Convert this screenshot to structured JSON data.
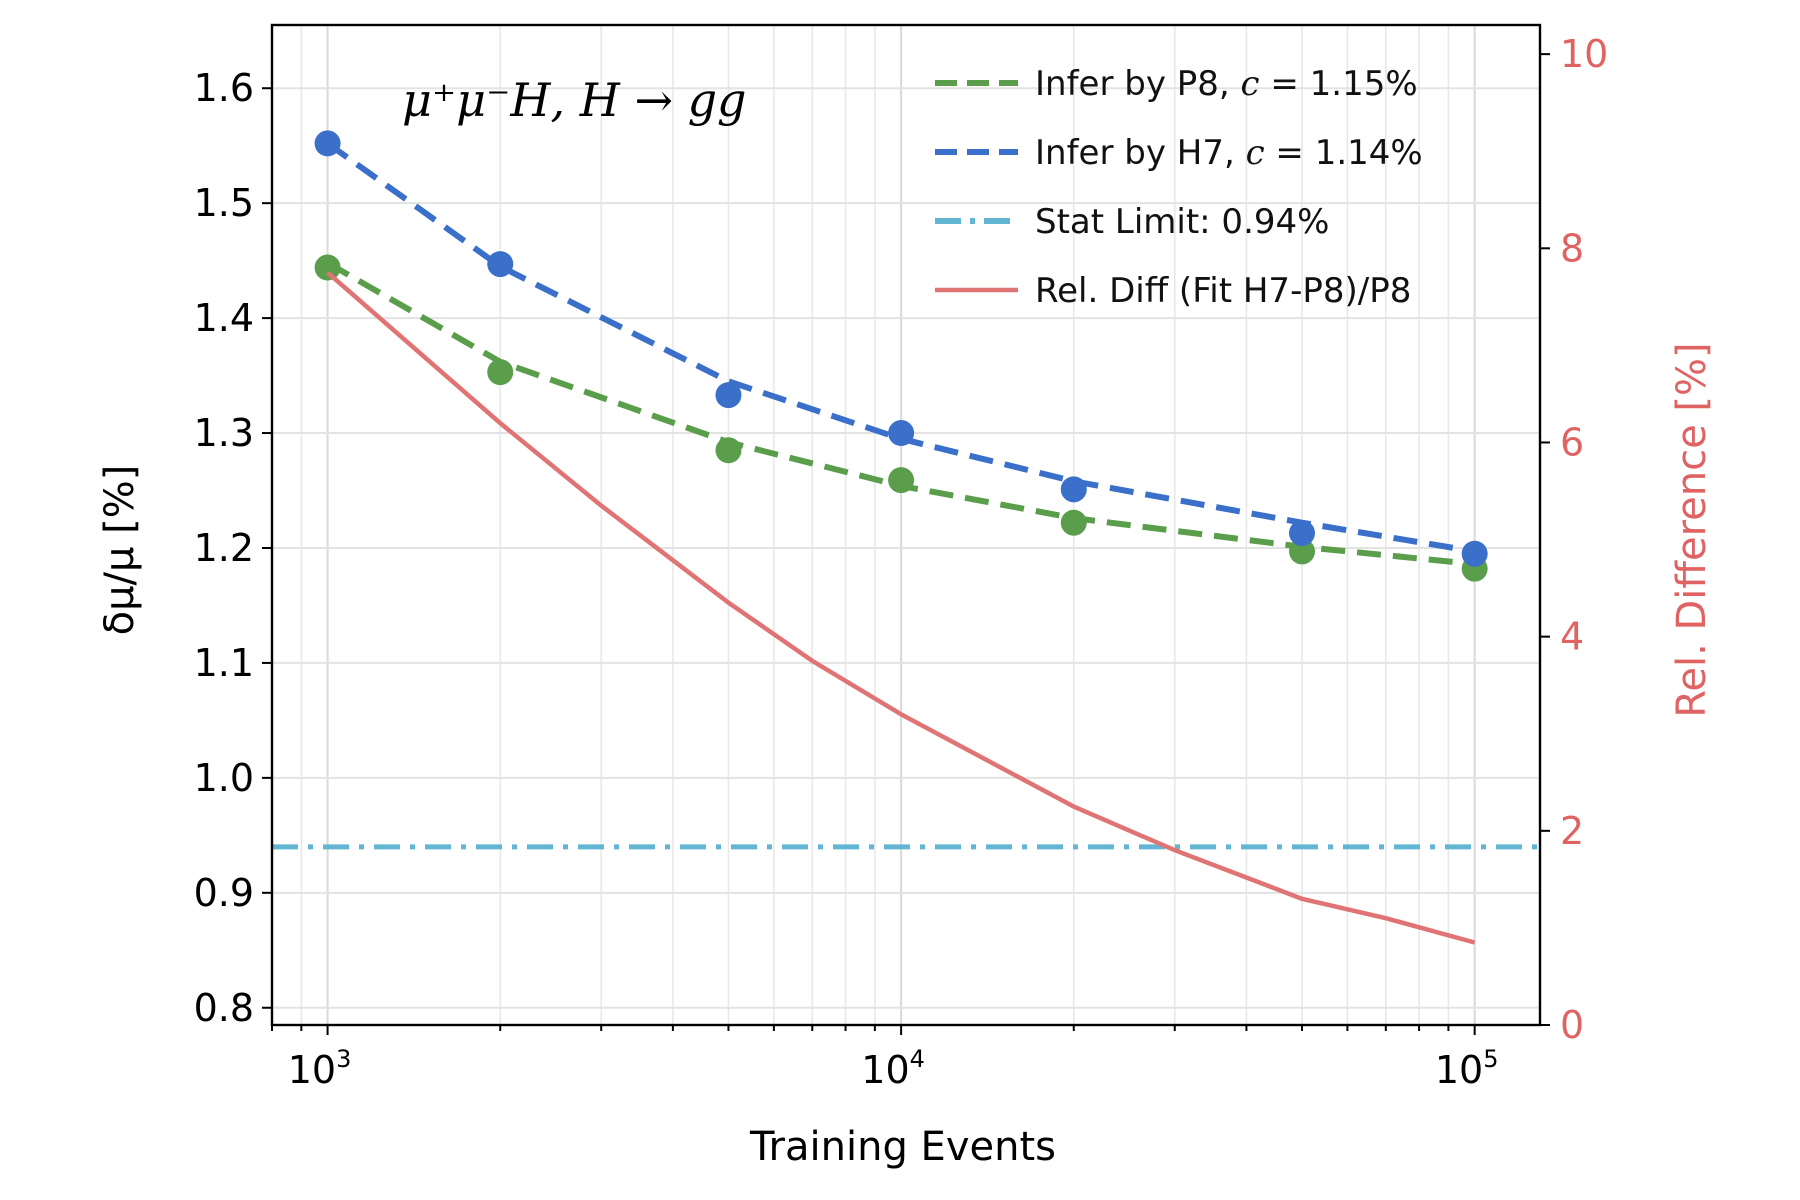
{
  "chart_data": {
    "type": "line",
    "annotation": "μ⁺μ⁻H, H → gg",
    "xlabel": "Training Events",
    "ylabel": "δμ/μ [%]",
    "ylabel_right": "Rel. Difference [%]",
    "xscale": "log",
    "xlim": [
      800,
      130000
    ],
    "ylim": [
      0.785,
      1.655
    ],
    "ylim_right": [
      0,
      10.3
    ],
    "x_ticks": [
      {
        "base": "10",
        "exp": "3",
        "value": 1000
      },
      {
        "base": "10",
        "exp": "4",
        "value": 10000
      },
      {
        "base": "10",
        "exp": "5",
        "value": 100000
      }
    ],
    "y_ticks": [
      "0.8",
      "0.9",
      "1.0",
      "1.1",
      "1.2",
      "1.3",
      "1.4",
      "1.5",
      "1.6"
    ],
    "y_ticks_right": [
      "0",
      "2",
      "4",
      "6",
      "8",
      "10"
    ],
    "grid": true,
    "legend_position": "top-right",
    "series": [
      {
        "name": "Infer by P8",
        "legend_label": "Infer by P8, c = 1.15%",
        "legend_prefix": "Infer by P8, ",
        "legend_var": "c",
        "legend_suffix": " = 1.15%",
        "color": "#5a9e4b",
        "style": "dashed",
        "x": [
          1000,
          2000,
          5000,
          10000,
          20000,
          50000,
          100000
        ],
        "y": [
          1.444,
          1.353,
          1.285,
          1.259,
          1.222,
          1.197,
          1.182
        ],
        "fit": {
          "c": 1.15,
          "points": [
            [
              1000,
              1.448
            ],
            [
              2000,
              1.362
            ],
            [
              5000,
              1.292
            ],
            [
              10000,
              1.254
            ],
            [
              20000,
              1.226
            ],
            [
              50000,
              1.201
            ],
            [
              100000,
              1.186
            ]
          ]
        }
      },
      {
        "name": "Infer by H7",
        "legend_label": "Infer by H7, c = 1.14%",
        "legend_prefix": "Infer by H7, ",
        "legend_var": "c",
        "legend_suffix": " = 1.14%",
        "color": "#3a6fca",
        "style": "dashed",
        "x": [
          1000,
          2000,
          5000,
          10000,
          20000,
          50000,
          100000
        ],
        "y": [
          1.552,
          1.447,
          1.333,
          1.3,
          1.251,
          1.213,
          1.195
        ],
        "fit": {
          "c": 1.14,
          "points": [
            [
              1000,
              1.552
            ],
            [
              2000,
              1.445
            ],
            [
              5000,
              1.345
            ],
            [
              10000,
              1.295
            ],
            [
              20000,
              1.258
            ],
            [
              50000,
              1.222
            ],
            [
              100000,
              1.197
            ]
          ]
        }
      },
      {
        "name": "Stat Limit",
        "legend_label": "Stat Limit: 0.94%",
        "color": "#62b6d4",
        "style": "dashdot",
        "y_const": 0.94
      },
      {
        "name": "Rel. Diff (Fit H7-P8)/P8",
        "legend_label": "Rel. Diff (Fit H7-P8)/P8",
        "color": "#e07474",
        "style": "solid",
        "axis": "right",
        "x": [
          1000,
          2000,
          3000,
          5000,
          7000,
          10000,
          20000,
          30000,
          50000,
          70000,
          100000
        ],
        "y": [
          7.75,
          6.2,
          5.35,
          4.35,
          3.75,
          3.2,
          2.25,
          1.8,
          1.3,
          1.1,
          0.85
        ]
      }
    ]
  }
}
